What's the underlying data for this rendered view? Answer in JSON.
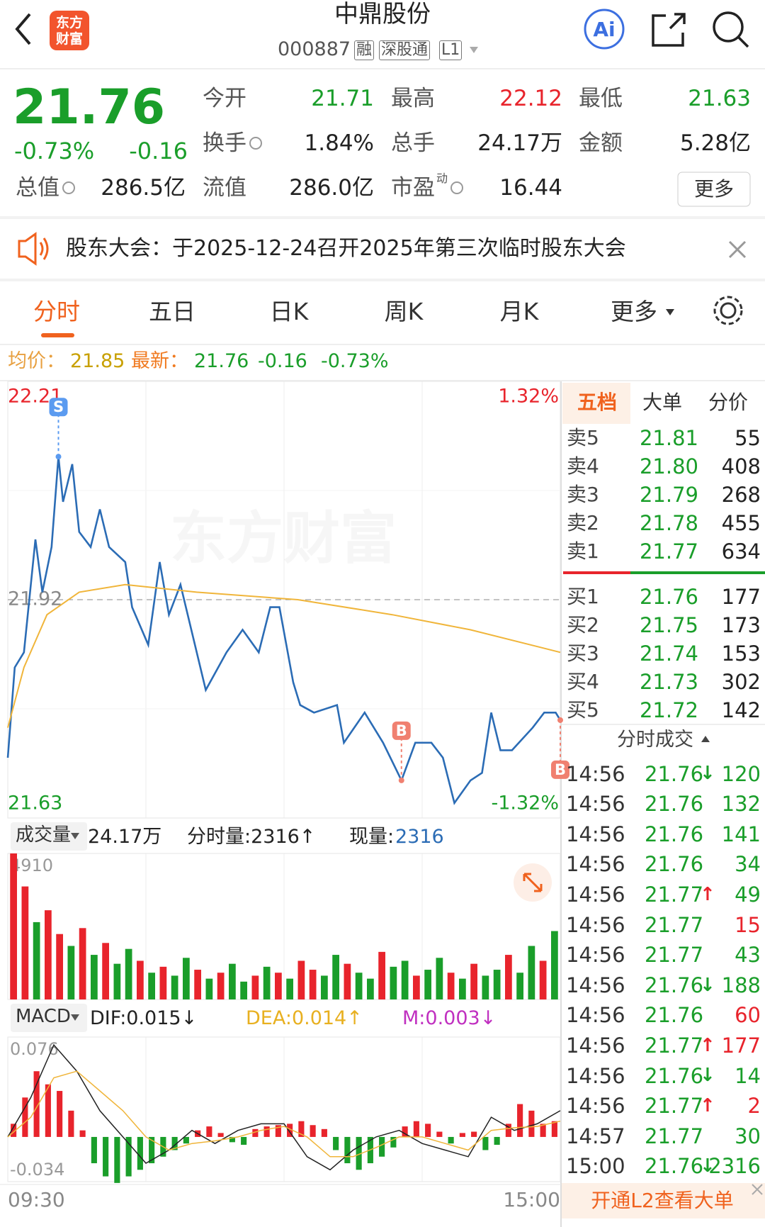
{
  "header": {
    "logo": [
      "东方",
      "财富"
    ],
    "title": "中鼎股份",
    "code": "000887",
    "tags": [
      "融",
      "深股通",
      "L1"
    ],
    "ai": "Ai"
  },
  "quote": {
    "price": "21.76",
    "change_pct": "-0.73%",
    "change": "-0.16",
    "fields": [
      {
        "label": "今开",
        "value": "21.71",
        "color": "#1a9e2a"
      },
      {
        "label": "最高",
        "value": "22.12",
        "color": "#e8242c"
      },
      {
        "label": "最低",
        "value": "21.63",
        "color": "#1a9e2a"
      },
      {
        "label": "换手",
        "value": "1.84%",
        "info_icon": true
      },
      {
        "label": "总手",
        "value": "24.17万"
      },
      {
        "label": "金额",
        "value": "5.28亿"
      },
      {
        "label": "总值",
        "value": "286.5亿",
        "info_icon": true
      },
      {
        "label": "流值",
        "value": "286.0亿"
      },
      {
        "label": "市盈",
        "sup": "动",
        "value": "16.44",
        "info_icon": true
      }
    ],
    "more": "更多"
  },
  "notice": {
    "text": "股东大会：于2025-12-24召开2025年第三次临时股东大会"
  },
  "tabs": [
    "分时",
    "五日",
    "日K",
    "周K",
    "月K",
    "更多"
  ],
  "info": {
    "avg_label": "均价：",
    "avg": "21.85",
    "latest_label": "最新：",
    "latest": "21.76",
    "change": "-0.16",
    "pct": "-0.73%"
  },
  "chart_data": [
    {
      "type": "line",
      "xlim": [
        0,
        240
      ],
      "xticks": [
        {
          "value": 0,
          "label": "09:30"
        },
        {
          "value": 240,
          "label": "15:00"
        }
      ],
      "ylim": [
        21.63,
        22.21
      ],
      "yticks": [
        21.63,
        21.92,
        22.21
      ],
      "y2lim": [
        -1.32,
        1.32
      ],
      "y2ticks": [
        {
          "value": -1.32,
          "label": "-1.32%"
        },
        {
          "value": 1.32,
          "label": "1.32%"
        }
      ],
      "grid": true,
      "watermark": "东方财富",
      "series": [
        {
          "color": "#2b6cb5",
          "x": [
            0,
            3,
            7,
            12,
            15,
            19,
            22,
            24,
            28,
            31,
            36,
            40,
            44,
            51,
            54,
            61,
            66,
            70,
            75,
            86,
            95,
            102,
            109,
            114,
            118,
            124,
            127,
            133,
            143,
            146,
            155,
            163,
            171,
            177,
            184,
            189,
            194,
            201,
            206,
            210,
            214,
            219,
            228,
            233,
            238,
            240
          ],
          "values": [
            21.71,
            21.83,
            21.85,
            22.0,
            21.93,
            21.99,
            22.11,
            22.05,
            22.1,
            22.01,
            21.99,
            22.04,
            21.99,
            21.97,
            21.91,
            21.86,
            21.97,
            21.9,
            21.94,
            21.8,
            21.85,
            21.88,
            21.85,
            21.91,
            21.91,
            21.81,
            21.78,
            21.77,
            21.78,
            21.73,
            21.77,
            21.73,
            21.68,
            21.73,
            21.73,
            21.71,
            21.65,
            21.68,
            21.69,
            21.77,
            21.72,
            21.72,
            21.75,
            21.77,
            21.77,
            21.76
          ]
        },
        {
          "color": "#f0b53a",
          "x": [
            0,
            7,
            17,
            31,
            51,
            82,
            126,
            167,
            201,
            240
          ],
          "values": [
            21.75,
            21.83,
            21.9,
            21.93,
            21.94,
            21.93,
            21.92,
            21.9,
            21.88,
            21.85
          ]
        }
      ],
      "annotations": [
        {
          "text": "S",
          "x": 22,
          "y": 22.11,
          "placement": "above",
          "color": "#5b9bf0"
        },
        {
          "text": "B",
          "x": 171,
          "y": 21.68,
          "placement": "above",
          "color": "#f08070"
        },
        {
          "text": "B",
          "x": 240,
          "y": 21.76,
          "placement": "below",
          "color": "#f08070"
        }
      ]
    },
    {
      "type": "bar",
      "title": "成交量",
      "total": "24.17万",
      "minute_volume": "分时量:2316↑",
      "current_label": "现量:",
      "current": "2316",
      "xlim": [
        0,
        240
      ],
      "ylim": [
        0,
        4910
      ],
      "yticks": [
        4910
      ],
      "x": [
        0,
        5,
        10,
        15,
        20,
        25,
        30,
        35,
        40,
        45,
        50,
        55,
        60,
        65,
        70,
        75,
        80,
        85,
        90,
        95,
        100,
        105,
        110,
        115,
        120,
        125,
        130,
        135,
        140,
        145,
        150,
        155,
        160,
        165,
        170,
        175,
        180,
        185,
        190,
        195,
        200,
        205,
        210,
        215,
        220,
        225,
        230,
        235
      ],
      "values": [
        4910,
        3800,
        2600,
        3000,
        2200,
        1800,
        2400,
        1500,
        1900,
        1200,
        1700,
        1300,
        900,
        1100,
        800,
        1400,
        1000,
        700,
        900,
        1200,
        600,
        800,
        1100,
        900,
        700,
        1300,
        1000,
        800,
        1500,
        1200,
        900,
        700,
        1600,
        1100,
        1300,
        800,
        1000,
        1400,
        900,
        700,
        1200,
        800,
        1000,
        1500,
        900,
        1800,
        1300,
        2300
      ],
      "colors": [
        "#e8242c",
        "#e8242c",
        "#1a9e2a",
        "#e8242c",
        "#e8242c",
        "#1a9e2a",
        "#e8242c",
        "#1a9e2a",
        "#e8242c",
        "#1a9e2a",
        "#1a9e2a",
        "#e8242c",
        "#1a9e2a",
        "#e8242c",
        "#1a9e2a",
        "#1a9e2a",
        "#e8242c",
        "#1a9e2a",
        "#e8242c",
        "#1a9e2a",
        "#1a9e2a",
        "#e8242c",
        "#1a9e2a",
        "#e8242c",
        "#1a9e2a",
        "#e8242c",
        "#e8242c",
        "#1a9e2a",
        "#1a9e2a",
        "#e8242c",
        "#1a9e2a",
        "#1a9e2a",
        "#e8242c",
        "#1a9e2a",
        "#1a9e2a",
        "#e8242c",
        "#1a9e2a",
        "#1a9e2a",
        "#e8242c",
        "#1a9e2a",
        "#e8242c",
        "#1a9e2a",
        "#1a9e2a",
        "#e8242c",
        "#1a9e2a",
        "#1a9e2a",
        "#e8242c",
        "#1a9e2a"
      ]
    },
    {
      "type": "macd",
      "title": "MACD",
      "dif": "DIF:0.015↓",
      "dea": "DEA:0.014↑",
      "m": "M:0.003↓",
      "xlim": [
        0,
        240
      ],
      "ylim": [
        -0.034,
        0.076
      ],
      "yticks": [
        -0.034,
        0.076
      ],
      "positive_color": "#e8242c",
      "negative_color": "#1a9e2a",
      "x": [
        0,
        5,
        10,
        15,
        20,
        25,
        30,
        35,
        40,
        45,
        50,
        55,
        60,
        65,
        70,
        75,
        80,
        85,
        90,
        95,
        100,
        105,
        110,
        115,
        120,
        125,
        130,
        135,
        140,
        145,
        150,
        155,
        160,
        165,
        170,
        175,
        180,
        185,
        190,
        195,
        200,
        205,
        210,
        215,
        220,
        225,
        230,
        235
      ],
      "values": [
        0.01,
        0.03,
        0.05,
        0.04,
        0.035,
        0.02,
        0.005,
        -0.02,
        -0.03,
        -0.035,
        -0.03,
        -0.025,
        -0.02,
        -0.015,
        -0.01,
        -0.005,
        0.005,
        0.008,
        0.003,
        -0.004,
        -0.006,
        0.006,
        0.008,
        0.009,
        0.01,
        0.012,
        0.009,
        0.006,
        -0.01,
        -0.02,
        -0.025,
        -0.02,
        -0.015,
        -0.008,
        0.008,
        0.012,
        0.01,
        0.004,
        -0.005,
        0.003,
        0.004,
        -0.01,
        -0.006,
        0.01,
        0.025,
        0.02,
        0.01,
        0.012
      ],
      "lines": [
        {
          "color": "#222222",
          "x": [
            0,
            10,
            20,
            30,
            40,
            50,
            60,
            70,
            80,
            90,
            100,
            110,
            120,
            130,
            140,
            150,
            160,
            170,
            180,
            190,
            200,
            210,
            220,
            230,
            240
          ],
          "values": [
            0.0,
            0.03,
            0.07,
            0.05,
            0.02,
            0.0,
            -0.02,
            -0.01,
            0.005,
            -0.005,
            0.005,
            0.01,
            0.01,
            -0.015,
            -0.025,
            -0.01,
            0.0,
            0.005,
            -0.005,
            -0.01,
            -0.015,
            0.015,
            0.005,
            0.01,
            0.02
          ]
        },
        {
          "color": "#f0b53a",
          "x": [
            0,
            10,
            20,
            30,
            40,
            50,
            60,
            70,
            80,
            90,
            100,
            110,
            120,
            130,
            140,
            150,
            160,
            170,
            180,
            190,
            200,
            210,
            220,
            230,
            240
          ],
          "values": [
            0.0,
            0.015,
            0.045,
            0.05,
            0.035,
            0.02,
            0.0,
            -0.01,
            -0.005,
            -0.003,
            0.0,
            0.005,
            0.008,
            0.0,
            -0.015,
            -0.015,
            -0.008,
            0.0,
            0.0,
            -0.005,
            -0.01,
            0.005,
            0.007,
            0.008,
            0.012
          ]
        }
      ]
    }
  ],
  "order_book": {
    "tabs": [
      "五档",
      "大单",
      "分价"
    ],
    "asks": [
      {
        "label": "卖5",
        "price": "21.81",
        "volume": "55"
      },
      {
        "label": "卖4",
        "price": "21.80",
        "volume": "408"
      },
      {
        "label": "卖3",
        "price": "21.79",
        "volume": "268"
      },
      {
        "label": "卖2",
        "price": "21.78",
        "volume": "455"
      },
      {
        "label": "卖1",
        "price": "21.77",
        "volume": "634"
      }
    ],
    "bids": [
      {
        "label": "买1",
        "price": "21.76",
        "volume": "177"
      },
      {
        "label": "买2",
        "price": "21.75",
        "volume": "173"
      },
      {
        "label": "买3",
        "price": "21.74",
        "volume": "153"
      },
      {
        "label": "买4",
        "price": "21.73",
        "volume": "302"
      },
      {
        "label": "买5",
        "price": "21.72",
        "volume": "142"
      }
    ]
  },
  "trades": {
    "title": "分时成交",
    "rows": [
      {
        "time": "14:56",
        "price": "21.76",
        "arrow": {
          "text": "↓",
          "color": "#1a9e2a"
        },
        "volume": "120",
        "color": "#1a9e2a"
      },
      {
        "time": "14:56",
        "price": "21.76",
        "volume": "132",
        "color": "#1a9e2a"
      },
      {
        "time": "14:56",
        "price": "21.76",
        "volume": "141",
        "color": "#1a9e2a"
      },
      {
        "time": "14:56",
        "price": "21.76",
        "volume": "34",
        "color": "#1a9e2a"
      },
      {
        "time": "14:56",
        "price": "21.77",
        "arrow": {
          "text": "↑",
          "color": "#e8242c"
        },
        "volume": "49",
        "color": "#1a9e2a"
      },
      {
        "time": "14:56",
        "price": "21.77",
        "volume": "15",
        "color": "#e8242c"
      },
      {
        "time": "14:56",
        "price": "21.77",
        "volume": "43",
        "color": "#1a9e2a"
      },
      {
        "time": "14:56",
        "price": "21.76",
        "arrow": {
          "text": "↓",
          "color": "#1a9e2a"
        },
        "volume": "188",
        "color": "#1a9e2a"
      },
      {
        "time": "14:56",
        "price": "21.76",
        "volume": "60",
        "color": "#e8242c"
      },
      {
        "time": "14:56",
        "price": "21.77",
        "arrow": {
          "text": "↑",
          "color": "#e8242c"
        },
        "volume": "177",
        "color": "#e8242c"
      },
      {
        "time": "14:56",
        "price": "21.76",
        "arrow": {
          "text": "↓",
          "color": "#1a9e2a"
        },
        "volume": "14",
        "color": "#1a9e2a"
      },
      {
        "time": "14:56",
        "price": "21.77",
        "arrow": {
          "text": "↑",
          "color": "#e8242c"
        },
        "volume": "2",
        "color": "#e8242c"
      },
      {
        "time": "14:57",
        "price": "21.77",
        "volume": "30",
        "color": "#1a9e2a"
      },
      {
        "time": "15:00",
        "price": "21.76",
        "arrow": {
          "text": "↓",
          "color": "#1a9e2a"
        },
        "volume": "2316",
        "color": "#1a9e2a"
      }
    ]
  },
  "footer": {
    "l2": "开通L2查看大单"
  }
}
